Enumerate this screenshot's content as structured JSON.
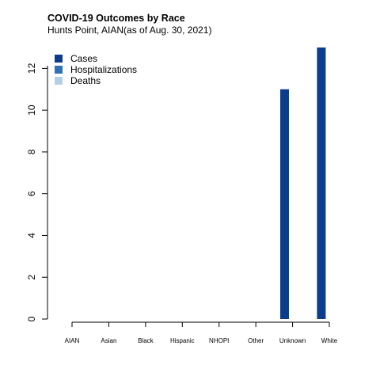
{
  "chart_data": {
    "type": "bar",
    "title": "COVID-19 Outcomes by Race",
    "subtitle": "Hunts Point, AIAN(as of Aug. 30, 2021)",
    "categories": [
      "AIAN",
      "Asian",
      "Black",
      "Hispanic",
      "NHOPI",
      "Other",
      "Unknown",
      "White"
    ],
    "series": [
      {
        "name": "Cases",
        "color": "#0b3d8c",
        "values": [
          0,
          0,
          0,
          0,
          0,
          0,
          11,
          13
        ]
      },
      {
        "name": "Hospitalizations",
        "color": "#2f71b6",
        "values": [
          0,
          0,
          0,
          0,
          0,
          0,
          0,
          0
        ]
      },
      {
        "name": "Deaths",
        "color": "#b5d0e6",
        "values": [
          0,
          0,
          0,
          0,
          0,
          0,
          0,
          0
        ]
      }
    ],
    "yticks": [
      "0",
      "2",
      "4",
      "6",
      "8",
      "10",
      "12"
    ],
    "ylim": [
      0,
      13
    ],
    "xlabel": "",
    "ylabel": "",
    "legend_position": "top-left",
    "grid": false
  }
}
